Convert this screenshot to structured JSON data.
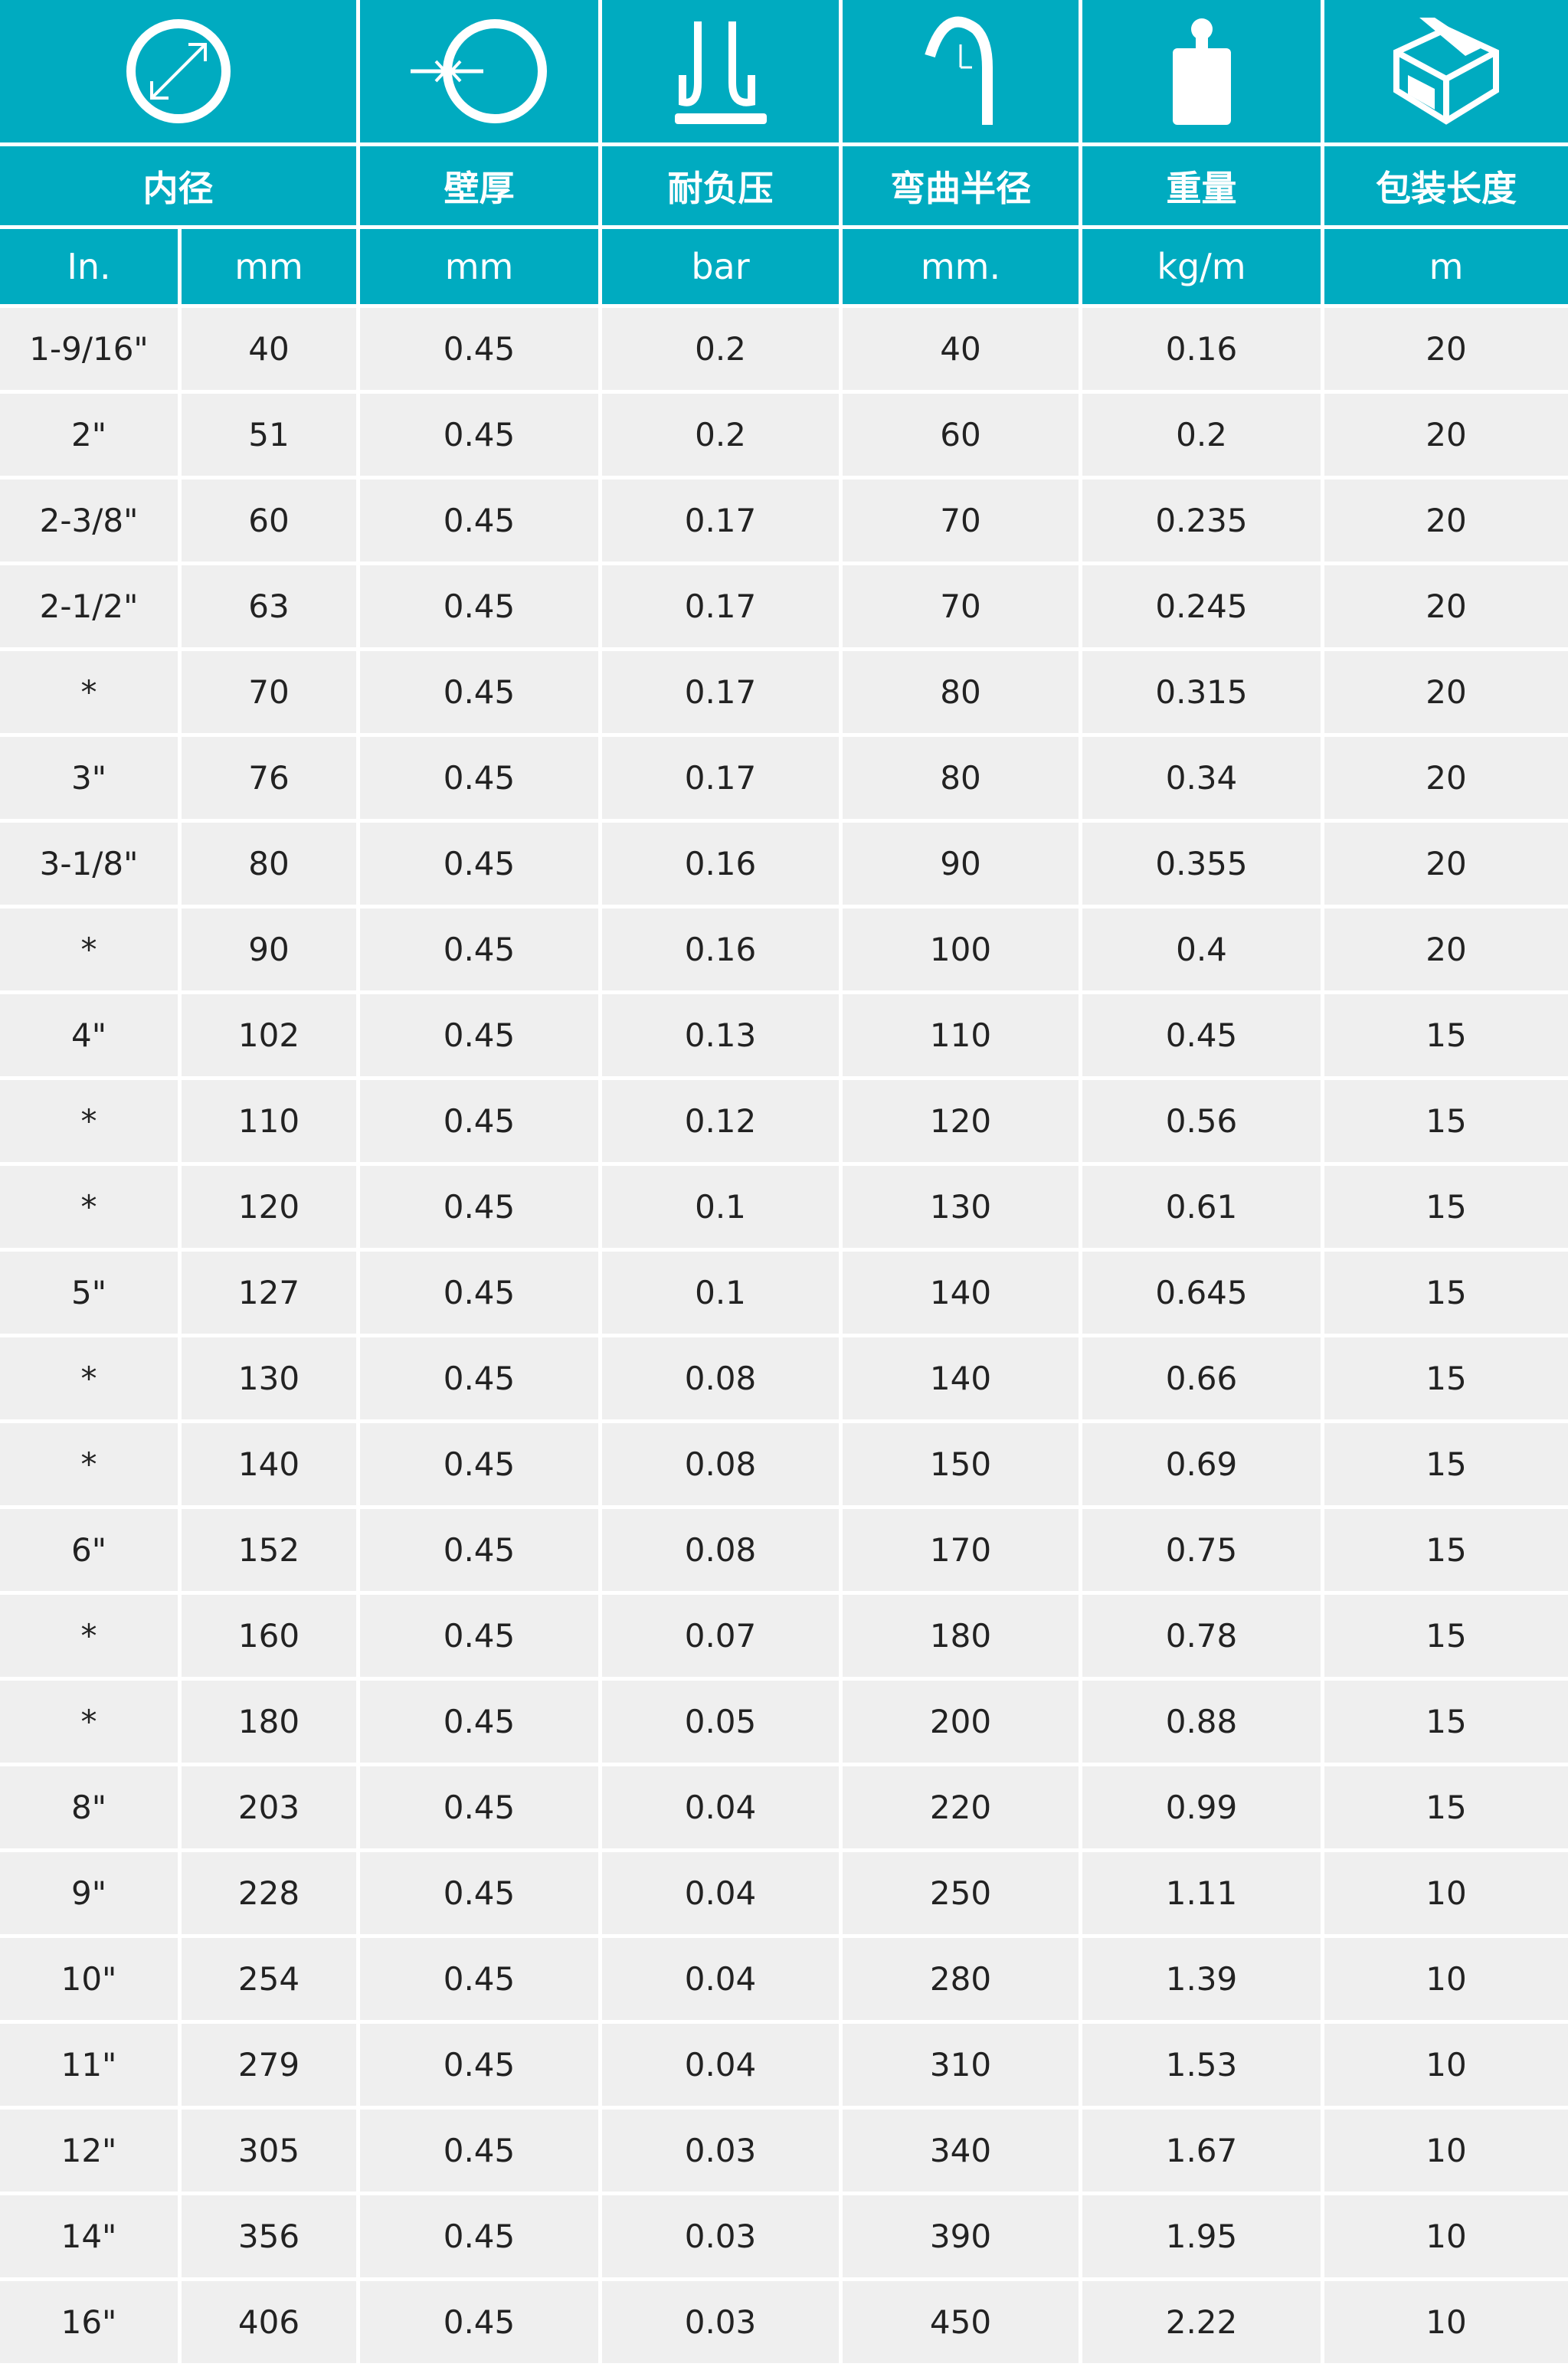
{
  "theme": {
    "header_bg": "#00abc0",
    "row_bg": "#efefef"
  },
  "icons": [
    "inner-diameter-icon",
    "wall-thickness-icon",
    "pressure-icon",
    "bend-radius-icon",
    "weight-icon",
    "package-icon"
  ],
  "headers": [
    "内径",
    "壁厚",
    "耐负压",
    "弯曲半径",
    "重量",
    "包装长度"
  ],
  "units": [
    "In.",
    "mm",
    "mm",
    "bar",
    "mm.",
    "kg/m",
    "m"
  ],
  "rows": [
    [
      "1-9/16\"",
      "40",
      "0.45",
      "0.2",
      "40",
      "0.16",
      "20"
    ],
    [
      "2\"",
      "51",
      "0.45",
      "0.2",
      "60",
      "0.2",
      "20"
    ],
    [
      "2-3/8\"",
      "60",
      "0.45",
      "0.17",
      "70",
      "0.235",
      "20"
    ],
    [
      "2-1/2\"",
      "63",
      "0.45",
      "0.17",
      "70",
      "0.245",
      "20"
    ],
    [
      "*",
      "70",
      "0.45",
      "0.17",
      "80",
      "0.315",
      "20"
    ],
    [
      "3\"",
      "76",
      "0.45",
      "0.17",
      "80",
      "0.34",
      "20"
    ],
    [
      "3-1/8\"",
      "80",
      "0.45",
      "0.16",
      "90",
      "0.355",
      "20"
    ],
    [
      "*",
      "90",
      "0.45",
      "0.16",
      "100",
      "0.4",
      "20"
    ],
    [
      "4\"",
      "102",
      "0.45",
      "0.13",
      "110",
      "0.45",
      "15"
    ],
    [
      "*",
      "110",
      "0.45",
      "0.12",
      "120",
      "0.56",
      "15"
    ],
    [
      "*",
      "120",
      "0.45",
      "0.1",
      "130",
      "0.61",
      "15"
    ],
    [
      "5\"",
      "127",
      "0.45",
      "0.1",
      "140",
      "0.645",
      "15"
    ],
    [
      "*",
      "130",
      "0.45",
      "0.08",
      "140",
      "0.66",
      "15"
    ],
    [
      "*",
      "140",
      "0.45",
      "0.08",
      "150",
      "0.69",
      "15"
    ],
    [
      "6\"",
      "152",
      "0.45",
      "0.08",
      "170",
      "0.75",
      "15"
    ],
    [
      "*",
      "160",
      "0.45",
      "0.07",
      "180",
      "0.78",
      "15"
    ],
    [
      "*",
      "180",
      "0.45",
      "0.05",
      "200",
      "0.88",
      "15"
    ],
    [
      "8\"",
      "203",
      "0.45",
      "0.04",
      "220",
      "0.99",
      "15"
    ],
    [
      "9\"",
      "228",
      "0.45",
      "0.04",
      "250",
      "1.11",
      "10"
    ],
    [
      "10\"",
      "254",
      "0.45",
      "0.04",
      "280",
      "1.39",
      "10"
    ],
    [
      "11\"",
      "279",
      "0.45",
      "0.04",
      "310",
      "1.53",
      "10"
    ],
    [
      "12\"",
      "305",
      "0.45",
      "0.03",
      "340",
      "1.67",
      "10"
    ],
    [
      "14\"",
      "356",
      "0.45",
      "0.03",
      "390",
      "1.95",
      "10"
    ],
    [
      "16\"",
      "406",
      "0.45",
      "0.03",
      "450",
      "2.22",
      "10"
    ]
  ]
}
